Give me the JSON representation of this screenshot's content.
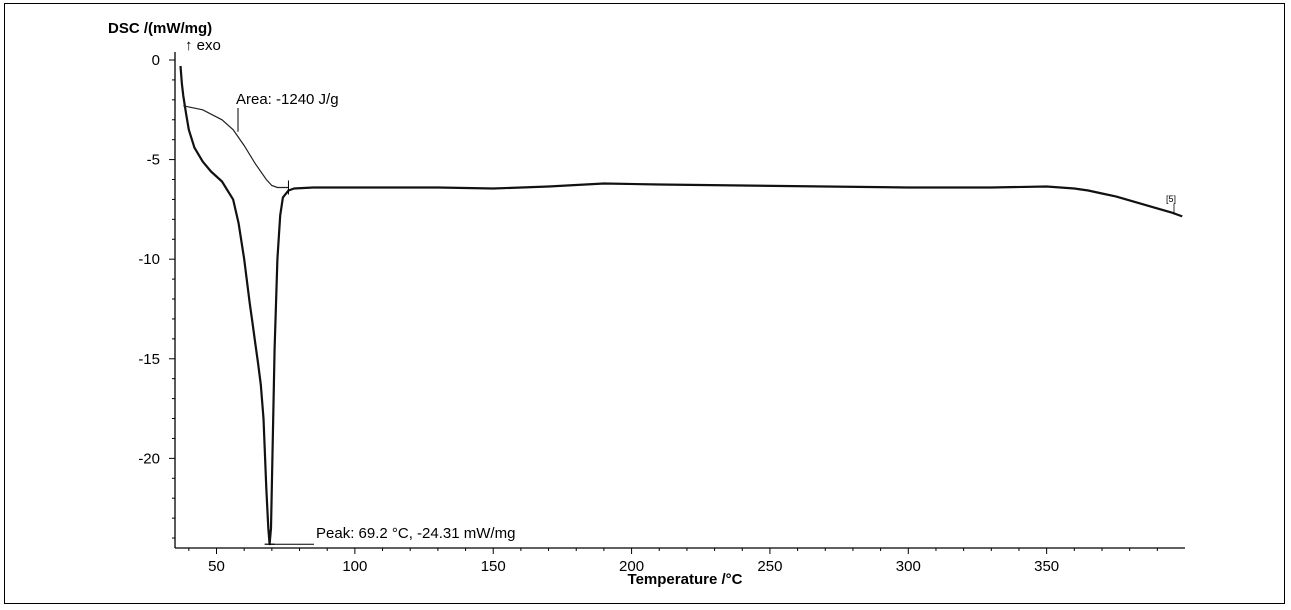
{
  "chart_data": {
    "type": "line",
    "title": "",
    "xlabel": "Temperature /°C",
    "ylabel": "DSC /(mW/mg)",
    "ylabel_note": "↑ exo",
    "xlim": [
      35,
      400
    ],
    "ylim": [
      -24.5,
      0
    ],
    "grid": false,
    "x_ticks": [
      50,
      100,
      150,
      200,
      250,
      300,
      350
    ],
    "y_ticks": [
      0,
      -5,
      -10,
      -15,
      -20
    ],
    "curve_label": "[5]",
    "series": [
      {
        "x": [
          37,
          37.5,
          38,
          39,
          40,
          42,
          45,
          48,
          52,
          56,
          58,
          60,
          62,
          63,
          64,
          65,
          66,
          67,
          68,
          68.7,
          69.2,
          69.7,
          70.2,
          71,
          72,
          73,
          74,
          76,
          78,
          85,
          100,
          130,
          150,
          170,
          190,
          210,
          240,
          270,
          300,
          330,
          350,
          360,
          365,
          370,
          375,
          380,
          385,
          390,
          395,
          399
        ],
        "y": [
          -0.3,
          -1.2,
          -1.8,
          -2.7,
          -3.5,
          -4.4,
          -5.1,
          -5.6,
          -6.1,
          -7.0,
          -8.2,
          -10.0,
          -12.2,
          -13.2,
          -14.2,
          -15.2,
          -16.3,
          -18.0,
          -21.5,
          -23.5,
          -24.31,
          -23.5,
          -20.0,
          -14.5,
          -10.0,
          -7.8,
          -6.9,
          -6.55,
          -6.45,
          -6.4,
          -6.4,
          -6.4,
          -6.45,
          -6.35,
          -6.2,
          -6.25,
          -6.3,
          -6.35,
          -6.4,
          -6.4,
          -6.35,
          -6.45,
          -6.55,
          -6.7,
          -6.85,
          -7.05,
          -7.25,
          -7.45,
          -7.65,
          -7.85
        ]
      }
    ],
    "baseline": {
      "x": [
        38,
        45,
        52,
        56,
        60,
        64,
        68,
        70,
        72,
        74,
        76
      ],
      "y": [
        -2.3,
        -2.5,
        -3.0,
        -3.5,
        -4.3,
        -5.2,
        -6.0,
        -6.3,
        -6.4,
        -6.4,
        -6.4
      ]
    },
    "annotations": {
      "area": "Area: -1240 J/g",
      "peak": "Peak: 69.2 °C, -24.31 mW/mg",
      "peak_x": 69.2,
      "peak_y": -24.31
    }
  }
}
